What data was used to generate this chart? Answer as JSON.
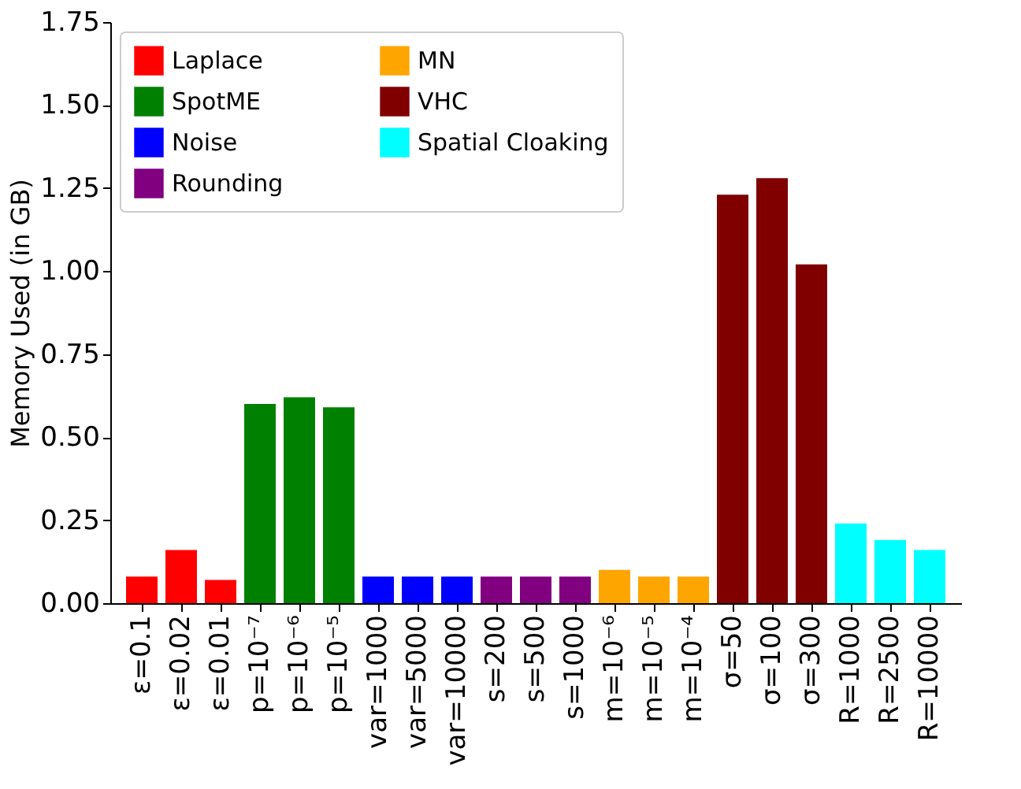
{
  "chart_data": {
    "type": "bar",
    "ylabel": "Memory Used (in GB)",
    "categories": [
      "ε=0.1",
      "ε=0.02",
      "ε=0.01",
      "p=10⁻⁷",
      "p=10⁻⁶",
      "p=10⁻⁵",
      "var=1000",
      "var=5000",
      "var=10000",
      "s=200",
      "s=500",
      "s=1000",
      "m=10⁻⁶",
      "m=10⁻⁵",
      "m=10⁻⁴",
      "σ=50",
      "σ=100",
      "σ=300",
      "R=1000",
      "R=2500",
      "R=10000"
    ],
    "series": [
      {
        "name": "Laplace",
        "color": "#ff0000",
        "values": [
          0.08,
          0.16,
          0.07,
          null,
          null,
          null,
          null,
          null,
          null,
          null,
          null,
          null,
          null,
          null,
          null,
          null,
          null,
          null,
          null,
          null,
          null
        ]
      },
      {
        "name": "SpotME",
        "color": "#008000",
        "values": [
          null,
          null,
          null,
          0.6,
          0.62,
          0.59,
          null,
          null,
          null,
          null,
          null,
          null,
          null,
          null,
          null,
          null,
          null,
          null,
          null,
          null,
          null
        ]
      },
      {
        "name": "Noise",
        "color": "#0000ff",
        "values": [
          null,
          null,
          null,
          null,
          null,
          null,
          0.08,
          0.08,
          0.08,
          null,
          null,
          null,
          null,
          null,
          null,
          null,
          null,
          null,
          null,
          null,
          null
        ]
      },
      {
        "name": "Rounding",
        "color": "#800080",
        "values": [
          null,
          null,
          null,
          null,
          null,
          null,
          null,
          null,
          null,
          0.08,
          0.08,
          0.08,
          null,
          null,
          null,
          null,
          null,
          null,
          null,
          null,
          null
        ]
      },
      {
        "name": "MN",
        "color": "#ffa500",
        "values": [
          null,
          null,
          null,
          null,
          null,
          null,
          null,
          null,
          null,
          null,
          null,
          null,
          0.1,
          0.08,
          0.08,
          null,
          null,
          null,
          null,
          null,
          null
        ]
      },
      {
        "name": "VHC",
        "color": "#800000",
        "values": [
          null,
          null,
          null,
          null,
          null,
          null,
          null,
          null,
          null,
          null,
          null,
          null,
          null,
          null,
          null,
          1.23,
          1.28,
          1.02,
          null,
          null,
          null
        ]
      },
      {
        "name": "Spatial Cloaking",
        "color": "#00ffff",
        "values": [
          null,
          null,
          null,
          null,
          null,
          null,
          null,
          null,
          null,
          null,
          null,
          null,
          null,
          null,
          null,
          null,
          null,
          null,
          0.24,
          0.19,
          0.16
        ]
      }
    ],
    "ylim": [
      0,
      1.75
    ],
    "yticks": [
      {
        "value": 0,
        "label": "0.00"
      },
      0.25,
      {
        "value": 0.5,
        "label": "0.50"
      },
      0.75,
      {
        "value": 1,
        "label": "1.00"
      },
      1.25,
      {
        "value": 1.5,
        "label": "1.50"
      },
      1.75
    ],
    "grid": false,
    "legend": "top left"
  }
}
